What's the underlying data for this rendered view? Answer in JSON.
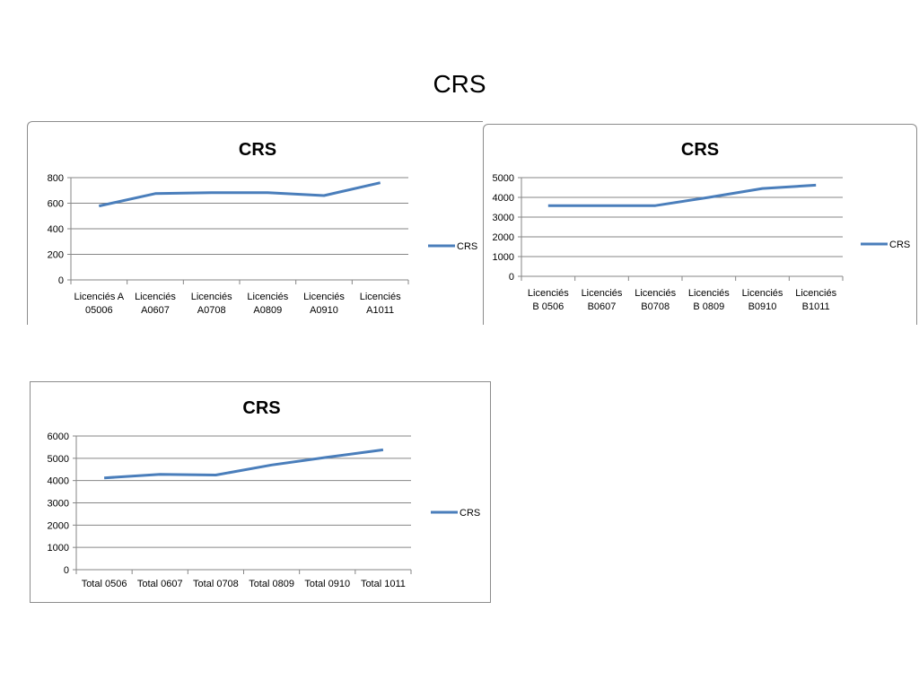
{
  "page": {
    "title": "CRS"
  },
  "chart_data": [
    {
      "type": "line",
      "title": "CRS",
      "xlabel": "",
      "ylabel": "",
      "categories": [
        [
          "Licenciés A",
          "05006"
        ],
        [
          "Licenciés",
          "A0607"
        ],
        [
          "Licenciés",
          "A0708"
        ],
        [
          "Licenciés",
          "A0809"
        ],
        [
          "Licenciés",
          "A0910"
        ],
        [
          "Licenciés",
          "A1011"
        ]
      ],
      "series": [
        {
          "name": "CRS",
          "values": [
            578,
            675,
            683,
            683,
            660,
            760
          ]
        }
      ],
      "ylim": [
        0,
        800
      ],
      "yticks": [
        0,
        200,
        400,
        600,
        800
      ],
      "grid": true,
      "legend": "right",
      "color": "#4a7ebb"
    },
    {
      "type": "line",
      "title": "CRS",
      "xlabel": "",
      "ylabel": "",
      "categories": [
        [
          "Licenciés",
          "B 0506"
        ],
        [
          "Licenciés",
          "B0607"
        ],
        [
          "Licenciés",
          "B0708"
        ],
        [
          "Licenciés",
          "B 0809"
        ],
        [
          "Licenciés",
          "B0910"
        ],
        [
          "Licenciés",
          "B1011"
        ]
      ],
      "series": [
        {
          "name": "CRS",
          "values": [
            3580,
            3580,
            3580,
            4000,
            4450,
            4620
          ]
        }
      ],
      "ylim": [
        0,
        5000
      ],
      "yticks": [
        0,
        1000,
        2000,
        3000,
        4000,
        5000
      ],
      "grid": true,
      "legend": "right",
      "color": "#4a7ebb"
    },
    {
      "type": "line",
      "title": "CRS",
      "xlabel": "",
      "ylabel": "",
      "categories": [
        [
          "Total 0506"
        ],
        [
          "Total 0607"
        ],
        [
          "Total 0708"
        ],
        [
          "Total 0809"
        ],
        [
          "Total 0910"
        ],
        [
          "Total 1011"
        ]
      ],
      "series": [
        {
          "name": "CRS",
          "values": [
            4120,
            4280,
            4250,
            4700,
            5050,
            5380
          ]
        }
      ],
      "ylim": [
        0,
        6000
      ],
      "yticks": [
        0,
        1000,
        2000,
        3000,
        4000,
        5000,
        6000
      ],
      "grid": true,
      "legend": "right",
      "color": "#4a7ebb"
    }
  ]
}
